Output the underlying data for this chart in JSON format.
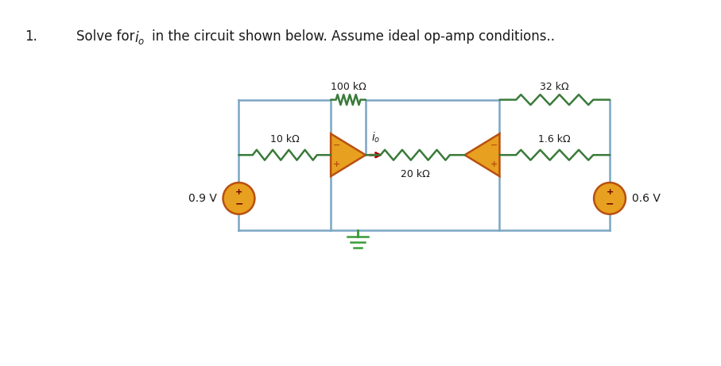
{
  "background_color": "#ffffff",
  "wire_color": "#7ba7c4",
  "resistor_color": "#3a7a3a",
  "opamp_fill": "#e8a020",
  "opamp_outline": "#b85010",
  "source_fill": "#e8a020",
  "source_outline": "#b85010",
  "ground_color": "#3a9a3a",
  "arrow_color": "#aa0000",
  "text_color": "#1a1a1a",
  "plus_minus_color": "#660000",
  "title": "Solve for ",
  "title_var": "i",
  "title_sub": "o",
  "title_rest": "in the circuit shown below. Assume ideal op-amp conditions..",
  "label_10k": "10 kΩ",
  "label_100k": "100 kΩ",
  "label_20k": "20 kΩ",
  "label_32k": "32 kΩ",
  "label_16k": "1.6 kΩ",
  "label_vs1": "0.9 V",
  "label_vs2": "0.6 V",
  "label_io": "i",
  "label_io_sub": "o"
}
